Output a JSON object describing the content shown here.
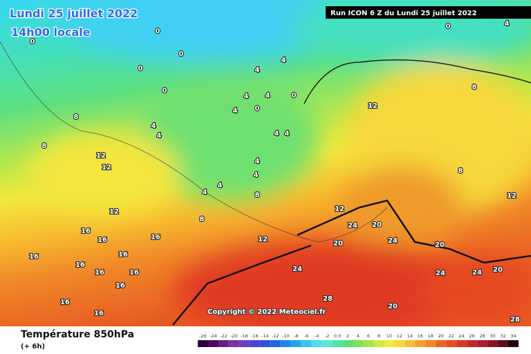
{
  "header": {
    "date": "Lundi 25 juillet 2022",
    "time": "14h00 locale",
    "run": "Run ICON 6 Z du Lundi 25 juillet 2022"
  },
  "copyright": "Copyright © 2022 Meteociel.fr",
  "footer": {
    "title": "Température 850hPa",
    "step": "(+ 6h)"
  },
  "legend": {
    "labels": [
      "-26",
      "-24",
      "-22",
      "-20",
      "-18",
      "-16",
      "-14",
      "-12",
      "-10",
      "-8",
      "-6",
      "-4",
      "-2",
      "0.0",
      "2",
      "4",
      "6",
      "8",
      "10",
      "12",
      "14",
      "16",
      "18",
      "20",
      "22",
      "24",
      "26",
      "28",
      "30",
      "32",
      "34"
    ],
    "colors": [
      "#2b0038",
      "#4a0a5e",
      "#6a1b86",
      "#7d2fa6",
      "#6b3cc4",
      "#4a45d6",
      "#2f4fe0",
      "#2066e8",
      "#1e86ee",
      "#23a4f0",
      "#36c4f2",
      "#4fdcee",
      "#5ae8d6",
      "#4fe6a8",
      "#58e07a",
      "#7be05a",
      "#a4e44a",
      "#cfe83e",
      "#eeea3a",
      "#f8d838",
      "#f8bc30",
      "#f8a02a",
      "#f48426",
      "#ee6622",
      "#e84a22",
      "#dc3424",
      "#c82428",
      "#b01a2a",
      "#8c1424",
      "#5e0c18",
      "#1a0608"
    ]
  },
  "map_labels": [
    "0",
    "0",
    "0",
    "0",
    "4",
    "4",
    "0",
    "4",
    "4",
    "0",
    "4",
    "0",
    "8",
    "4",
    "4",
    "4",
    "4",
    "8",
    "12",
    "12",
    "4",
    "4",
    "4",
    "4",
    "8",
    "8",
    "12",
    "12",
    "12",
    "16",
    "16",
    "16",
    "16",
    "16",
    "16",
    "16",
    "16",
    "16",
    "16",
    "16",
    "24",
    "28",
    "20",
    "24",
    "20",
    "24",
    "24",
    "20",
    "20",
    "12",
    "8",
    "8",
    "12",
    "0",
    "4",
    "24",
    "20",
    "28"
  ]
}
